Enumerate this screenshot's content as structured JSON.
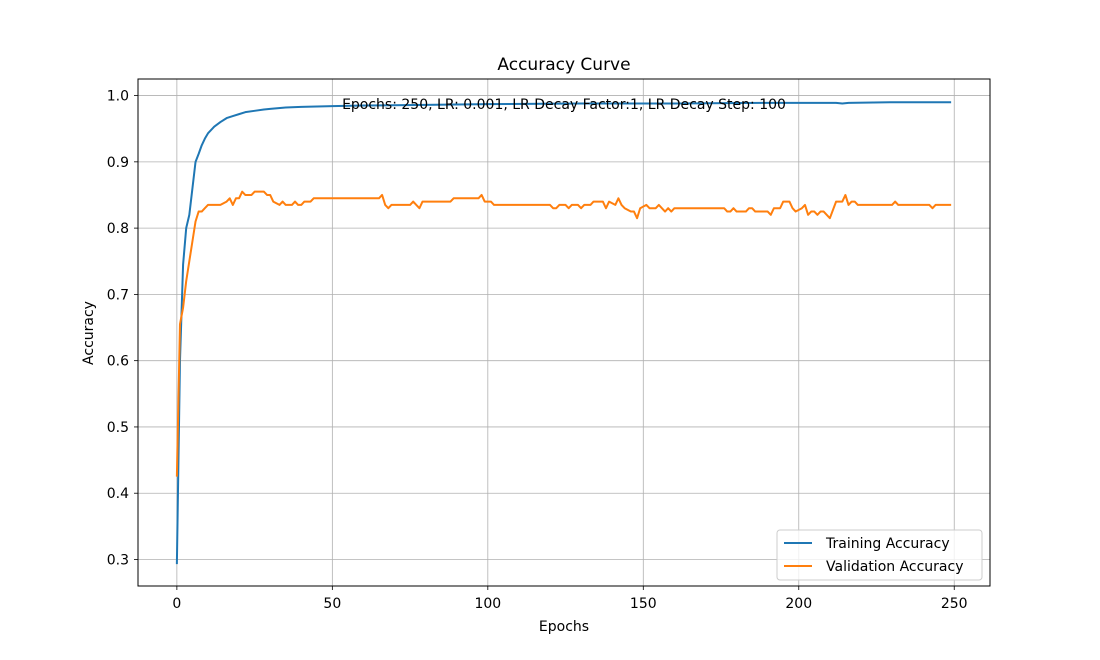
{
  "chart_data": {
    "type": "line",
    "title": "Accuracy Curve",
    "xlabel": "Epochs",
    "ylabel": "Accuracy",
    "annotation": "Epochs: 250, LR: 0.001, LR Decay Factor:1, LR Decay Step: 100",
    "xlim": [
      -12.5,
      261.5
    ],
    "ylim": [
      0.26,
      1.025
    ],
    "xticks": [
      0,
      50,
      100,
      150,
      200,
      250
    ],
    "yticks": [
      0.3,
      0.4,
      0.5,
      0.6,
      0.7,
      0.8,
      0.9,
      1.0
    ],
    "xtick_labels": [
      "0",
      "50",
      "100",
      "150",
      "200",
      "250"
    ],
    "ytick_labels": [
      "0.3",
      "0.4",
      "0.5",
      "0.6",
      "0.7",
      "0.8",
      "0.9",
      "1.0"
    ],
    "grid": true,
    "legend_position": "lower-right",
    "series": [
      {
        "name": "Training Accuracy",
        "color": "#1f77b4",
        "points": [
          [
            0,
            0.293
          ],
          [
            1,
            0.6
          ],
          [
            2,
            0.745
          ],
          [
            3,
            0.8
          ],
          [
            4,
            0.82
          ],
          [
            5,
            0.86
          ],
          [
            6,
            0.9
          ],
          [
            7,
            0.912
          ],
          [
            8,
            0.925
          ],
          [
            9,
            0.935
          ],
          [
            10,
            0.943
          ],
          [
            12,
            0.953
          ],
          [
            14,
            0.96
          ],
          [
            16,
            0.966
          ],
          [
            18,
            0.969
          ],
          [
            20,
            0.972
          ],
          [
            22,
            0.975
          ],
          [
            25,
            0.977
          ],
          [
            28,
            0.979
          ],
          [
            30,
            0.98
          ],
          [
            35,
            0.982
          ],
          [
            40,
            0.983
          ],
          [
            50,
            0.984
          ],
          [
            60,
            0.985
          ],
          [
            80,
            0.986
          ],
          [
            100,
            0.987
          ],
          [
            130,
            0.988
          ],
          [
            160,
            0.988
          ],
          [
            190,
            0.989
          ],
          [
            212,
            0.989
          ],
          [
            214,
            0.988
          ],
          [
            216,
            0.989
          ],
          [
            230,
            0.99
          ],
          [
            249,
            0.99
          ]
        ]
      },
      {
        "name": "Validation Accuracy",
        "color": "#ff7f0e",
        "points": [
          [
            0,
            0.425
          ],
          [
            1,
            0.655
          ],
          [
            2,
            0.68
          ],
          [
            3,
            0.72
          ],
          [
            4,
            0.75
          ],
          [
            5,
            0.78
          ],
          [
            6,
            0.81
          ],
          [
            7,
            0.825
          ],
          [
            8,
            0.825
          ],
          [
            9,
            0.83
          ],
          [
            10,
            0.835
          ],
          [
            12,
            0.835
          ],
          [
            14,
            0.835
          ],
          [
            16,
            0.84
          ],
          [
            17,
            0.845
          ],
          [
            18,
            0.835
          ],
          [
            19,
            0.845
          ],
          [
            20,
            0.845
          ],
          [
            21,
            0.855
          ],
          [
            22,
            0.85
          ],
          [
            24,
            0.85
          ],
          [
            25,
            0.855
          ],
          [
            28,
            0.855
          ],
          [
            29,
            0.85
          ],
          [
            30,
            0.85
          ],
          [
            31,
            0.84
          ],
          [
            33,
            0.835
          ],
          [
            34,
            0.84
          ],
          [
            35,
            0.835
          ],
          [
            37,
            0.835
          ],
          [
            38,
            0.84
          ],
          [
            39,
            0.835
          ],
          [
            40,
            0.835
          ],
          [
            41,
            0.84
          ],
          [
            43,
            0.84
          ],
          [
            44,
            0.845
          ],
          [
            50,
            0.845
          ],
          [
            60,
            0.845
          ],
          [
            65,
            0.845
          ],
          [
            66,
            0.85
          ],
          [
            67,
            0.835
          ],
          [
            68,
            0.83
          ],
          [
            69,
            0.835
          ],
          [
            75,
            0.835
          ],
          [
            76,
            0.84
          ],
          [
            77,
            0.835
          ],
          [
            78,
            0.83
          ],
          [
            79,
            0.84
          ],
          [
            85,
            0.84
          ],
          [
            88,
            0.84
          ],
          [
            89,
            0.845
          ],
          [
            97,
            0.845
          ],
          [
            98,
            0.85
          ],
          [
            99,
            0.84
          ],
          [
            101,
            0.84
          ],
          [
            102,
            0.835
          ],
          [
            110,
            0.835
          ],
          [
            120,
            0.835
          ],
          [
            121,
            0.83
          ],
          [
            122,
            0.83
          ],
          [
            123,
            0.835
          ],
          [
            125,
            0.835
          ],
          [
            126,
            0.83
          ],
          [
            127,
            0.835
          ],
          [
            129,
            0.835
          ],
          [
            130,
            0.83
          ],
          [
            131,
            0.835
          ],
          [
            133,
            0.835
          ],
          [
            134,
            0.84
          ],
          [
            137,
            0.84
          ],
          [
            138,
            0.83
          ],
          [
            139,
            0.84
          ],
          [
            141,
            0.835
          ],
          [
            142,
            0.845
          ],
          [
            143,
            0.835
          ],
          [
            144,
            0.83
          ],
          [
            146,
            0.825
          ],
          [
            147,
            0.825
          ],
          [
            148,
            0.815
          ],
          [
            149,
            0.83
          ],
          [
            151,
            0.835
          ],
          [
            152,
            0.83
          ],
          [
            154,
            0.83
          ],
          [
            155,
            0.835
          ],
          [
            157,
            0.825
          ],
          [
            158,
            0.83
          ],
          [
            159,
            0.825
          ],
          [
            160,
            0.83
          ],
          [
            165,
            0.83
          ],
          [
            170,
            0.83
          ],
          [
            176,
            0.83
          ],
          [
            177,
            0.825
          ],
          [
            178,
            0.825
          ],
          [
            179,
            0.83
          ],
          [
            180,
            0.825
          ],
          [
            183,
            0.825
          ],
          [
            184,
            0.83
          ],
          [
            185,
            0.83
          ],
          [
            186,
            0.825
          ],
          [
            190,
            0.825
          ],
          [
            191,
            0.82
          ],
          [
            192,
            0.83
          ],
          [
            194,
            0.83
          ],
          [
            195,
            0.84
          ],
          [
            197,
            0.84
          ],
          [
            198,
            0.83
          ],
          [
            199,
            0.825
          ],
          [
            201,
            0.83
          ],
          [
            202,
            0.835
          ],
          [
            203,
            0.82
          ],
          [
            204,
            0.825
          ],
          [
            205,
            0.825
          ],
          [
            206,
            0.82
          ],
          [
            207,
            0.825
          ],
          [
            208,
            0.825
          ],
          [
            210,
            0.815
          ],
          [
            212,
            0.84
          ],
          [
            214,
            0.84
          ],
          [
            215,
            0.85
          ],
          [
            216,
            0.835
          ],
          [
            217,
            0.84
          ],
          [
            218,
            0.84
          ],
          [
            219,
            0.835
          ],
          [
            225,
            0.835
          ],
          [
            230,
            0.835
          ],
          [
            231,
            0.84
          ],
          [
            232,
            0.835
          ],
          [
            240,
            0.835
          ],
          [
            242,
            0.835
          ],
          [
            243,
            0.83
          ],
          [
            244,
            0.835
          ],
          [
            249,
            0.835
          ]
        ]
      }
    ]
  }
}
